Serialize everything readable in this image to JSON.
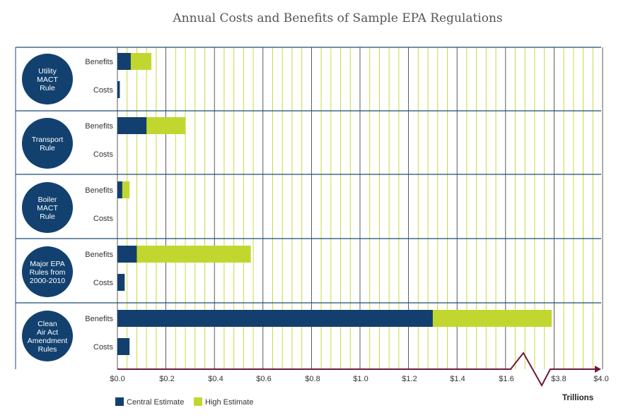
{
  "title": "Annual Costs and Benefits of Sample EPA Regulations",
  "unit_label": "Trillions",
  "colors": {
    "central": "#123f6e",
    "high": "#c1d72f",
    "grid_major": "#333333",
    "grid_minor": "#c1d72f",
    "axis": "#6b1a3a",
    "circle": "#12416f"
  },
  "chart_data": {
    "type": "bar",
    "orientation": "horizontal",
    "stacked": true,
    "title": "Annual Costs and Benefits of Sample EPA Regulations",
    "xlabel": "Trillions",
    "x_tick_labels": [
      "$0.0",
      "$0.2",
      "$0.4",
      "$0.6",
      "$0.8",
      "$1.0",
      "$1.2",
      "$1.4",
      "$1.6",
      "$3.8",
      "$4.0"
    ],
    "axis_break": "between $1.6 and $3.8",
    "legend": [
      "Central Estimate",
      "High Estimate"
    ],
    "legend_position": "bottom-left",
    "groups": [
      {
        "label": [
          "Utility",
          "MACT",
          "Rule"
        ],
        "rows": [
          {
            "label": "Benefits",
            "central": 0.055,
            "high": 0.14
          },
          {
            "label": "Costs",
            "central": 0.01,
            "high": 0.01
          }
        ]
      },
      {
        "label": [
          "Transport",
          "Rule"
        ],
        "rows": [
          {
            "label": "Benefits",
            "central": 0.12,
            "high": 0.28
          },
          {
            "label": "Costs",
            "central": 0.0,
            "high": 0.0
          }
        ]
      },
      {
        "label": [
          "Boiler",
          "MACT",
          "Rule"
        ],
        "rows": [
          {
            "label": "Benefits",
            "central": 0.02,
            "high": 0.05
          },
          {
            "label": "Costs",
            "central": 0.0,
            "high": 0.0
          }
        ]
      },
      {
        "label": [
          "Major EPA",
          "Rules from",
          "2000-2010"
        ],
        "rows": [
          {
            "label": "Benefits",
            "central": 0.08,
            "high": 0.55
          },
          {
            "label": "Costs",
            "central": 0.03,
            "high": 0.03
          }
        ]
      },
      {
        "label": [
          "Clean",
          "Air Act",
          "Amendment",
          "Rules"
        ],
        "rows": [
          {
            "label": "Benefits",
            "central": 1.3,
            "high": 2.0
          },
          {
            "label": "Costs",
            "central": 0.05,
            "high": 0.05
          }
        ]
      }
    ]
  }
}
